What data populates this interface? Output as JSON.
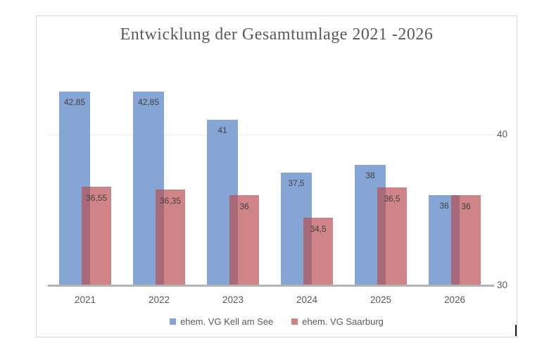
{
  "chart_data": {
    "type": "bar",
    "title": "Entwicklung der Gesamtumlage 2021 -2026",
    "categories": [
      "2021",
      "2022",
      "2023",
      "2024",
      "2025",
      "2026"
    ],
    "series": [
      {
        "name": "ehem. VG Kell am See",
        "color": "#85a5d4",
        "values": [
          42.85,
          42.85,
          41,
          37.5,
          38,
          36
        ],
        "value_labels": [
          "42,85",
          "42,85",
          "41",
          "37,5",
          "38",
          "36"
        ]
      },
      {
        "name": "ehem. VG Saarburg",
        "color": "#cf8487",
        "values": [
          36.55,
          36.35,
          36,
          34.5,
          36.5,
          36
        ],
        "value_labels": [
          "36,55",
          "36,35",
          "36",
          "34,5",
          "36,5",
          "36"
        ]
      }
    ],
    "series_overlap_color": "#a86a78",
    "xlabel": "",
    "ylabel": "",
    "ylim": [
      30,
      44
    ],
    "yticks": [
      {
        "value": 40,
        "label": "40"
      },
      {
        "value": 30,
        "label": "30"
      }
    ],
    "gridline_values": [
      40
    ],
    "grid": true,
    "legend_position": "bottom",
    "axis_color": "#b3b3b3",
    "gridline_color": "#ebebeb",
    "label_color": "#595959",
    "value_label_color": "#404040"
  }
}
